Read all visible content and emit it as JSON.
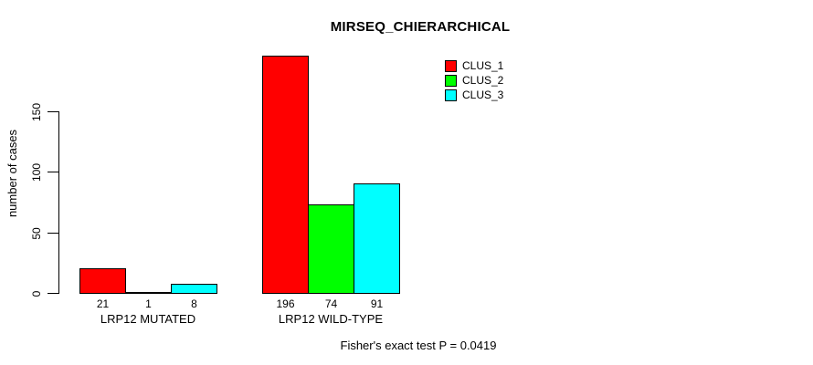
{
  "chart_data": {
    "type": "bar",
    "title": "MIRSEQ_CHIERARCHICAL",
    "ylabel": "number of cases",
    "xlabel": "",
    "categories": [
      "LRP12 MUTATED",
      "LRP12 WILD-TYPE"
    ],
    "series": [
      {
        "name": "CLUS_1",
        "color": "#FF0000",
        "values": [
          21,
          196
        ]
      },
      {
        "name": "CLUS_2",
        "color": "#00FF00",
        "values": [
          1,
          74
        ]
      },
      {
        "name": "CLUS_3",
        "color": "#00FFFF",
        "values": [
          8,
          91
        ]
      }
    ],
    "bar_value_labels": [
      [
        21,
        1,
        8
      ],
      [
        196,
        74,
        91
      ]
    ],
    "yticks": [
      0,
      50,
      100,
      150
    ],
    "ylim": [
      0,
      200
    ],
    "grid": false,
    "legend_position": "top-right",
    "bar_border_color": "#000000",
    "background_color": "#FFFFFF",
    "text_color": "#000000",
    "footnote": "Fisher's exact test P = 0.0419"
  }
}
